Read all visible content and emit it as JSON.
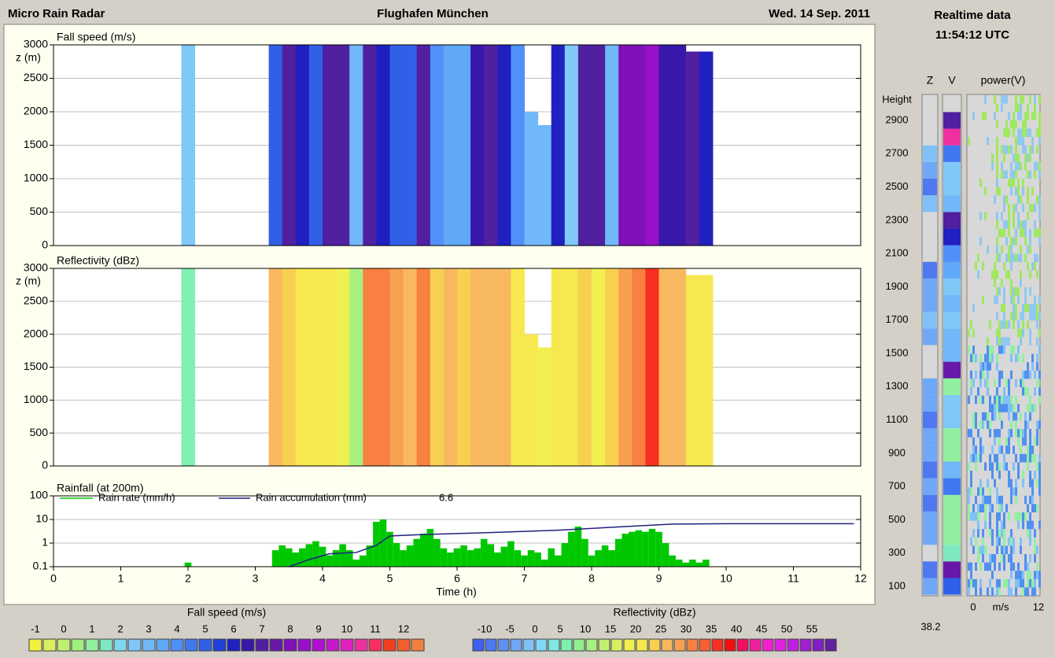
{
  "header": {
    "title": "Micro Rain Radar",
    "site": "Flughafen München",
    "date": "Wed.  14 Sep. 2011"
  },
  "chart_data": [
    {
      "type": "heatmap",
      "title": "Fall speed (m/s)",
      "ylabel": "z (m)",
      "ylim": [
        0,
        3000
      ],
      "yticks": [
        0,
        500,
        1000,
        1500,
        2000,
        2500,
        3000
      ],
      "grid": true,
      "xlim": [
        0,
        12
      ],
      "x": [
        2.0,
        3.3,
        3.5,
        3.7,
        3.9,
        4.1,
        4.3,
        4.5,
        4.7,
        4.9,
        5.1,
        5.3,
        5.5,
        5.7,
        5.9,
        6.1,
        6.3,
        6.5,
        6.7,
        6.9,
        7.1,
        7.3,
        7.5,
        7.7,
        7.9,
        8.1,
        8.3,
        8.5,
        8.7,
        8.9,
        9.1,
        9.3,
        9.5,
        9.7
      ],
      "top": [
        3000,
        3000,
        3000,
        3000,
        3000,
        3000,
        3000,
        3000,
        3000,
        3000,
        3000,
        3000,
        3000,
        3000,
        3000,
        3000,
        3000,
        3000,
        3000,
        3000,
        2000,
        1800,
        3000,
        3000,
        3000,
        3000,
        3000,
        3000,
        3000,
        3000,
        3000,
        3000,
        2900,
        2900
      ],
      "values": [
        2.5,
        5,
        7,
        6,
        5,
        7,
        7,
        3,
        7,
        6,
        5,
        5,
        7,
        4,
        3.5,
        3.5,
        6.5,
        7,
        6,
        4,
        3,
        3,
        6,
        2.5,
        7,
        7,
        3,
        8,
        8,
        8.5,
        6.5,
        6.5,
        7,
        6
      ],
      "colorbar": {
        "title": "Fall speed (m/s)",
        "lim": [
          -1.25,
          12.75
        ],
        "ticks": [
          -1,
          0,
          1,
          2,
          3,
          4,
          5,
          6,
          7,
          8,
          9,
          10,
          11,
          12
        ],
        "colors": [
          "#f0f040",
          "#d8f060",
          "#c0f070",
          "#a0f080",
          "#90f0a0",
          "#80e8c0",
          "#80d8f0",
          "#80c8f8",
          "#70b8f8",
          "#60a8f8",
          "#5090f8",
          "#4078f0",
          "#3060e8",
          "#2040d8",
          "#2020c0",
          "#3818a8",
          "#5020a0",
          "#6818a8",
          "#8010b8",
          "#9810c8",
          "#b010d0",
          "#c818c8",
          "#e020c0",
          "#f030a0",
          "#f83060",
          "#f04020",
          "#f06030",
          "#f08040"
        ]
      }
    },
    {
      "type": "heatmap",
      "title": "Reflectivity (dBz)",
      "ylabel": "z (m)",
      "ylim": [
        0,
        3000
      ],
      "yticks": [
        0,
        500,
        1000,
        1500,
        2000,
        2500,
        3000
      ],
      "grid": true,
      "xlim": [
        0,
        12
      ],
      "x": [
        2.0,
        3.3,
        3.5,
        3.7,
        3.9,
        4.1,
        4.3,
        4.5,
        4.7,
        4.9,
        5.1,
        5.3,
        5.5,
        5.7,
        5.9,
        6.1,
        6.3,
        6.5,
        6.7,
        6.9,
        7.1,
        7.3,
        7.5,
        7.7,
        7.9,
        8.1,
        8.3,
        8.5,
        8.7,
        8.9,
        9.1,
        9.3,
        9.5,
        9.7
      ],
      "top": [
        3000,
        3000,
        3000,
        3000,
        3000,
        3000,
        3000,
        3000,
        3000,
        3000,
        3000,
        3000,
        3000,
        3000,
        3000,
        3000,
        3000,
        3000,
        3000,
        3000,
        2000,
        1800,
        3000,
        3000,
        3000,
        3000,
        3000,
        3000,
        3000,
        3000,
        3000,
        3000,
        2900,
        2900
      ],
      "values": [
        5,
        25,
        24,
        22,
        20,
        20,
        18,
        10,
        30,
        32,
        28,
        26,
        30,
        24,
        25,
        24,
        27,
        26,
        25,
        22,
        20,
        18,
        22,
        20,
        24,
        18,
        24,
        28,
        32,
        35,
        26,
        25,
        22,
        20
      ],
      "colorbar": {
        "title": "Reflectivity (dBz)",
        "lim": [
          -12.5,
          60
        ],
        "ticks": [
          -10,
          -5,
          0,
          5,
          10,
          15,
          20,
          25,
          30,
          35,
          40,
          45,
          50,
          55
        ],
        "colors": [
          "#4060f0",
          "#5078f0",
          "#6090f0",
          "#70a8f8",
          "#80c0f8",
          "#80d8f8",
          "#80e8e0",
          "#80f0b0",
          "#90f090",
          "#a8f080",
          "#c0f070",
          "#d8f060",
          "#f0f050",
          "#f8e850",
          "#f8d050",
          "#f8b860",
          "#f8a050",
          "#f88040",
          "#f86030",
          "#f83020",
          "#f01010",
          "#f01060",
          "#f020a0",
          "#f020d0",
          "#e020e0",
          "#c020e0",
          "#a020d0",
          "#8020c0",
          "#6020a0"
        ]
      }
    },
    {
      "type": "rain",
      "title": "Rainfall (at 200m)",
      "log": true,
      "grid": true,
      "ylim": [
        0.1,
        100
      ],
      "yticks": [
        0.1,
        1,
        10,
        100
      ],
      "xlim": [
        0,
        12
      ],
      "xticks": [
        0,
        1,
        2,
        3,
        4,
        5,
        6,
        7,
        8,
        9,
        10,
        11,
        12
      ],
      "xlabel": "Time (h)",
      "series": [
        {
          "name": "Rain rate (mm/h)",
          "color": "#00c800",
          "x": [
            2.0,
            3.3,
            3.4,
            3.5,
            3.6,
            3.7,
            3.8,
            3.9,
            4.0,
            4.1,
            4.2,
            4.3,
            4.4,
            4.5,
            4.6,
            4.7,
            4.8,
            4.9,
            5.0,
            5.1,
            5.2,
            5.3,
            5.4,
            5.5,
            5.6,
            5.7,
            5.8,
            5.9,
            6.0,
            6.1,
            6.2,
            6.3,
            6.4,
            6.5,
            6.6,
            6.7,
            6.8,
            6.9,
            7.0,
            7.1,
            7.2,
            7.3,
            7.4,
            7.5,
            7.6,
            7.7,
            7.8,
            7.9,
            8.0,
            8.1,
            8.2,
            8.3,
            8.4,
            8.5,
            8.6,
            8.7,
            8.8,
            8.9,
            9.0,
            9.1,
            9.2,
            9.3,
            9.4,
            9.5,
            9.6,
            9.7
          ],
          "values": [
            0.15,
            0.5,
            0.8,
            0.6,
            0.4,
            0.6,
            0.9,
            1.2,
            0.7,
            0.3,
            0.5,
            0.9,
            0.5,
            0.2,
            0.3,
            0.8,
            8,
            10,
            3,
            1,
            0.5,
            0.8,
            1.5,
            2.5,
            4,
            1.5,
            0.6,
            0.4,
            0.6,
            0.8,
            0.5,
            0.6,
            1.5,
            0.9,
            0.4,
            0.7,
            1.2,
            0.5,
            0.3,
            0.5,
            0.4,
            0.2,
            0.6,
            0.3,
            1,
            3,
            5,
            1.5,
            0.3,
            0.5,
            0.8,
            0.5,
            1.5,
            2.5,
            3,
            3.5,
            3,
            4,
            3,
            1,
            0.3,
            0.2,
            0.15,
            0.2,
            0.15,
            0.2
          ]
        },
        {
          "name": "Rain accumulation (mm)",
          "color": "#202080",
          "total": 6.6,
          "x": [
            3.5,
            3.8,
            4.1,
            4.5,
            4.8,
            5.0,
            5.5,
            6.5,
            7.5,
            8.5,
            9.2,
            10,
            11.9
          ],
          "values": [
            0.1,
            0.2,
            0.35,
            0.4,
            0.8,
            2,
            2.3,
            2.8,
            3.5,
            5,
            6.4,
            6.6,
            6.6
          ]
        }
      ]
    }
  ],
  "realtime": {
    "title": "Realtime data",
    "time": "11:54:12  UTC",
    "z_label": "Z",
    "v_label": "V",
    "power_label": "power(V)",
    "height_label": "Height",
    "yticks": [
      100,
      300,
      500,
      700,
      900,
      1100,
      1300,
      1500,
      1700,
      1900,
      2100,
      2300,
      2500,
      2700,
      2900
    ],
    "heights": [
      100,
      200,
      300,
      400,
      500,
      600,
      700,
      800,
      900,
      1000,
      1100,
      1200,
      1300,
      1400,
      1500,
      1600,
      1700,
      1800,
      1900,
      2000,
      2100,
      2200,
      2300,
      2400,
      2500,
      2600,
      2700,
      2800,
      2900
    ],
    "z_values": [
      -5,
      -8,
      null,
      -5,
      -3,
      -8,
      -5,
      -8,
      -5,
      -3,
      -8,
      -5,
      -3,
      null,
      null,
      -3,
      -1,
      -3,
      -5,
      -8,
      null,
      null,
      null,
      -1,
      -8,
      -3,
      -1,
      null,
      null
    ],
    "v_values": [
      5,
      7.5,
      1.5,
      1,
      1,
      1,
      4.5,
      3,
      1,
      1,
      2.5,
      2.5,
      1,
      7.5,
      3,
      3,
      2.5,
      3,
      2.5,
      3.5,
      4,
      6,
      7,
      3,
      2.5,
      2.5,
      4.5,
      10.5,
      7
    ],
    "power_xticks": [
      0,
      12
    ],
    "power_unit": "m/s",
    "value": 38.2
  }
}
